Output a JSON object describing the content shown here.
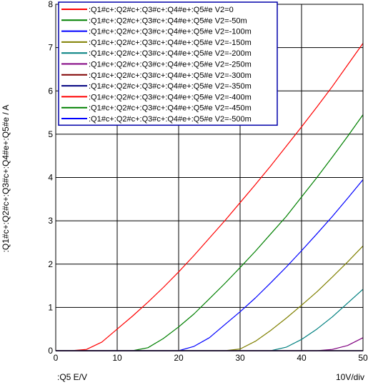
{
  "chart_data": {
    "type": "line",
    "xlabel": ":Q5  E/V",
    "ylabel": ":Q1#c+:Q2#c+:Q3#c+:Q4#e+:Q5#e / A",
    "scale_note": "10V/div",
    "xlim": [
      0,
      50
    ],
    "ylim": [
      0,
      8
    ],
    "x_ticks": [
      "0",
      "10",
      "20",
      "30",
      "40",
      "50"
    ],
    "y_ticks": [
      "0",
      "1",
      "2",
      "3",
      "4",
      "5",
      "6",
      "7",
      "8"
    ],
    "grid": true,
    "legend_position": "top-left",
    "x": [
      0,
      2.5,
      5,
      7.5,
      10,
      12.5,
      15,
      17.5,
      20,
      22.5,
      25,
      27.5,
      30,
      32.5,
      35,
      37.5,
      40,
      42.5,
      45,
      47.5,
      50
    ],
    "series": [
      {
        "name": ":Q1#c+:Q2#c+:Q3#c+:Q4#e+:Q5#e V2=0",
        "color": "#ff0000",
        "values": [
          0,
          0,
          0.03,
          0.2,
          0.5,
          0.8,
          1.12,
          1.46,
          1.82,
          2.2,
          2.6,
          3.0,
          3.42,
          3.84,
          4.27,
          4.72,
          5.17,
          5.63,
          6.1,
          6.6,
          7.1
        ]
      },
      {
        "name": ":Q1#c+:Q2#c+:Q3#c+:Q4#e+:Q5#e V2=-50m",
        "color": "#008000",
        "values": [
          0,
          0,
          0,
          0,
          0,
          0,
          0.07,
          0.28,
          0.55,
          0.85,
          1.2,
          1.55,
          1.92,
          2.3,
          2.7,
          3.1,
          3.55,
          4.0,
          4.47,
          4.95,
          5.45
        ]
      },
      {
        "name": ":Q1#c+:Q2#c+:Q3#c+:Q4#e+:Q5#e V2=-100m",
        "color": "#0000ff",
        "values": [
          0,
          0,
          0,
          0,
          0,
          0,
          0,
          0,
          0,
          0.1,
          0.3,
          0.6,
          0.9,
          1.22,
          1.57,
          1.93,
          2.31,
          2.7,
          3.1,
          3.52,
          3.95
        ]
      },
      {
        "name": ":Q1#c+:Q2#c+:Q3#c+:Q4#e+:Q5#e V2=-150m",
        "color": "#808000",
        "values": [
          0,
          0,
          0,
          0,
          0,
          0,
          0,
          0,
          0,
          0,
          0,
          0,
          0.04,
          0.22,
          0.47,
          0.75,
          1.05,
          1.36,
          1.7,
          2.05,
          2.42
        ]
      },
      {
        "name": ":Q1#c+:Q2#c+:Q3#c+:Q4#e+:Q5#e V2=-200m",
        "color": "#008080",
        "values": [
          0,
          0,
          0,
          0,
          0,
          0,
          0,
          0,
          0,
          0,
          0,
          0,
          0,
          0,
          0,
          0.08,
          0.26,
          0.5,
          0.78,
          1.1,
          1.42
        ]
      },
      {
        "name": ":Q1#c+:Q2#c+:Q3#c+:Q4#e+:Q5#e V2=-250m",
        "color": "#800080",
        "values": [
          0,
          0,
          0,
          0,
          0,
          0,
          0,
          0,
          0,
          0,
          0,
          0,
          0,
          0,
          0,
          0,
          0,
          0,
          0.03,
          0.12,
          0.3
        ]
      },
      {
        "name": ":Q1#c+:Q2#c+:Q3#c+:Q4#e+:Q5#e V2=-300m",
        "color": "#800000",
        "values": [
          0,
          0,
          0,
          0,
          0,
          0,
          0,
          0,
          0,
          0,
          0,
          0,
          0,
          0,
          0,
          0,
          0,
          0,
          0,
          0,
          0
        ]
      },
      {
        "name": ":Q1#c+:Q2#c+:Q3#c+:Q4#e+:Q5#e V2=-350m",
        "color": "#000080",
        "values": [
          0,
          0,
          0,
          0,
          0,
          0,
          0,
          0,
          0,
          0,
          0,
          0,
          0,
          0,
          0,
          0,
          0,
          0,
          0,
          0,
          0
        ]
      },
      {
        "name": ":Q1#c+:Q2#c+:Q3#c+:Q4#e+:Q5#e V2=-400m",
        "color": "#ff0000",
        "values": [
          0,
          0,
          0,
          0,
          0,
          0,
          0,
          0,
          0,
          0,
          0,
          0,
          0,
          0,
          0,
          0,
          0,
          0,
          0,
          0,
          0
        ]
      },
      {
        "name": ":Q1#c+:Q2#c+:Q3#c+:Q4#e+:Q5#e V2=-450m",
        "color": "#008000",
        "values": [
          0,
          0,
          0,
          0,
          0,
          0,
          0,
          0,
          0,
          0,
          0,
          0,
          0,
          0,
          0,
          0,
          0,
          0,
          0,
          0,
          0
        ]
      },
      {
        "name": ":Q1#c+:Q2#c+:Q3#c+:Q4#e+:Q5#e V2=-500m",
        "color": "#0000ff",
        "values": [
          0,
          0,
          0,
          0,
          0,
          0,
          0,
          0,
          0,
          0,
          0,
          0,
          0,
          0,
          0,
          0,
          0,
          0,
          0,
          0,
          0
        ]
      }
    ]
  }
}
